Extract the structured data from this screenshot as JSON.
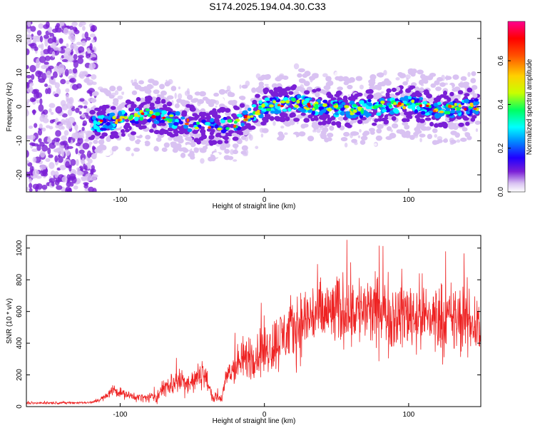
{
  "figure": {
    "title": "S174.2025.194.04.30.C33"
  },
  "chart_data": [
    {
      "type": "heatmap",
      "title": "S174.2025.194.04.30.C33",
      "xlabel": "Height of straight line (km)",
      "ylabel": "Frequency (Hz)",
      "xlim": [
        -165,
        150
      ],
      "ylim": [
        -25,
        25
      ],
      "xticks": [
        -100,
        0,
        100
      ],
      "yticks": [
        -20,
        -10,
        0,
        10,
        20
      ],
      "xtick_labels": [
        "-100",
        "0",
        "100"
      ],
      "ytick_labels": [
        "-20",
        "-10",
        "0",
        "10",
        "20"
      ],
      "colorbar": {
        "label": "Normalized spectral amplitude",
        "range": [
          0,
          0.78
        ],
        "ticks": [
          0.0,
          0.2,
          0.4,
          0.6
        ],
        "tick_labels": [
          "0.0",
          "0.2",
          "0.4",
          "0.6"
        ],
        "colormap": [
          "#ffffff",
          "#d9c2f2",
          "#7a1fd6",
          "#2000ff",
          "#0090ff",
          "#00ffff",
          "#00ff60",
          "#c8ff00",
          "#ffd000",
          "#ff5000",
          "#ff0000",
          "#ff0090"
        ]
      },
      "signal_track": {
        "description_points_x": [
          -120,
          -100,
          -80,
          -60,
          -40,
          -20,
          0,
          20,
          40,
          60,
          80,
          100,
          120,
          145
        ],
        "description_points_y": [
          -5,
          -4,
          -2,
          -4,
          -6,
          -5,
          0,
          1,
          0,
          -1,
          0,
          1,
          -1,
          0
        ],
        "peak_amplitude": 0.75
      },
      "grid": false
    },
    {
      "type": "line",
      "xlabel": "Height of straight line (km)",
      "ylabel": "SNR (10 * v/v)",
      "xlim": [
        -165,
        150
      ],
      "ylim": [
        0,
        1080
      ],
      "xticks": [
        -100,
        0,
        100
      ],
      "yticks": [
        0,
        200,
        400,
        600,
        800,
        1000
      ],
      "xtick_labels": [
        "-100",
        "0",
        "100"
      ],
      "ytick_labels": [
        "0",
        "200",
        "400",
        "600",
        "800",
        "1000"
      ],
      "series": [
        {
          "color": "#ee2222",
          "x": [
            -165,
            -140,
            -120,
            -110,
            -105,
            -95,
            -85,
            -75,
            -68,
            -60,
            -50,
            -42,
            -36,
            -30,
            -25,
            -20,
            -15,
            -10,
            -5,
            0,
            5,
            10,
            15,
            20,
            25,
            30,
            35,
            40,
            50,
            60,
            70,
            80,
            90,
            100,
            110,
            120,
            130,
            140,
            148
          ],
          "values": [
            22,
            24,
            25,
            60,
            110,
            70,
            55,
            60,
            130,
            160,
            150,
            220,
            60,
            50,
            210,
            250,
            290,
            320,
            330,
            360,
            380,
            420,
            460,
            490,
            520,
            560,
            580,
            580,
            600,
            620,
            600,
            590,
            580,
            590,
            570,
            560,
            550,
            540,
            520
          ],
          "noise_amplitude": [
            8,
            8,
            8,
            25,
            40,
            30,
            30,
            40,
            80,
            90,
            90,
            100,
            30,
            40,
            110,
            130,
            150,
            170,
            170,
            190,
            200,
            210,
            220,
            230,
            240,
            240,
            250,
            250,
            250,
            260,
            250,
            250,
            250,
            260,
            250,
            250,
            250,
            250,
            250
          ],
          "max_value": 1060
        }
      ],
      "grid": false
    }
  ]
}
